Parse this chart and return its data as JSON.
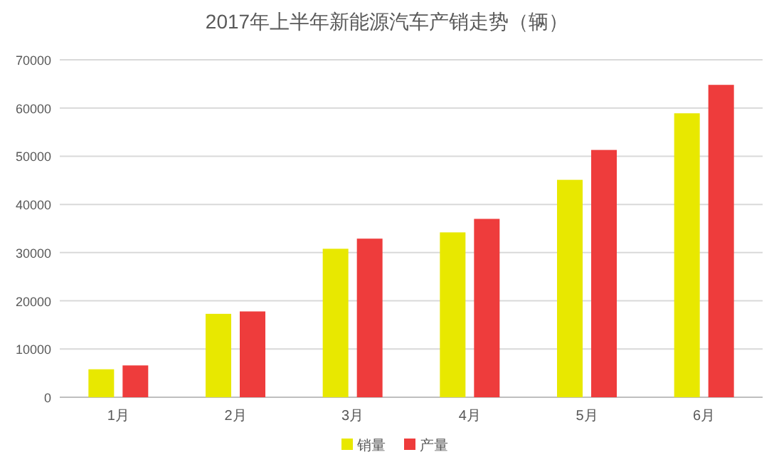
{
  "chart_data": {
    "type": "bar",
    "title": "2017年上半年新能源汽车产销走势（辆）",
    "categories": [
      "1月",
      "2月",
      "3月",
      "4月",
      "5月",
      "6月"
    ],
    "series": [
      {
        "name": "销量",
        "color": "#e8e800",
        "values": [
          5800,
          17300,
          30800,
          34200,
          45100,
          58900
        ]
      },
      {
        "name": "产量",
        "color": "#ee3c3c",
        "values": [
          6600,
          17800,
          32900,
          37000,
          51300,
          64800
        ]
      }
    ],
    "ylim": [
      0,
      70000
    ],
    "yticks": [
      0,
      10000,
      20000,
      30000,
      40000,
      50000,
      60000,
      70000
    ],
    "grid": "y",
    "legend": "bottom"
  }
}
